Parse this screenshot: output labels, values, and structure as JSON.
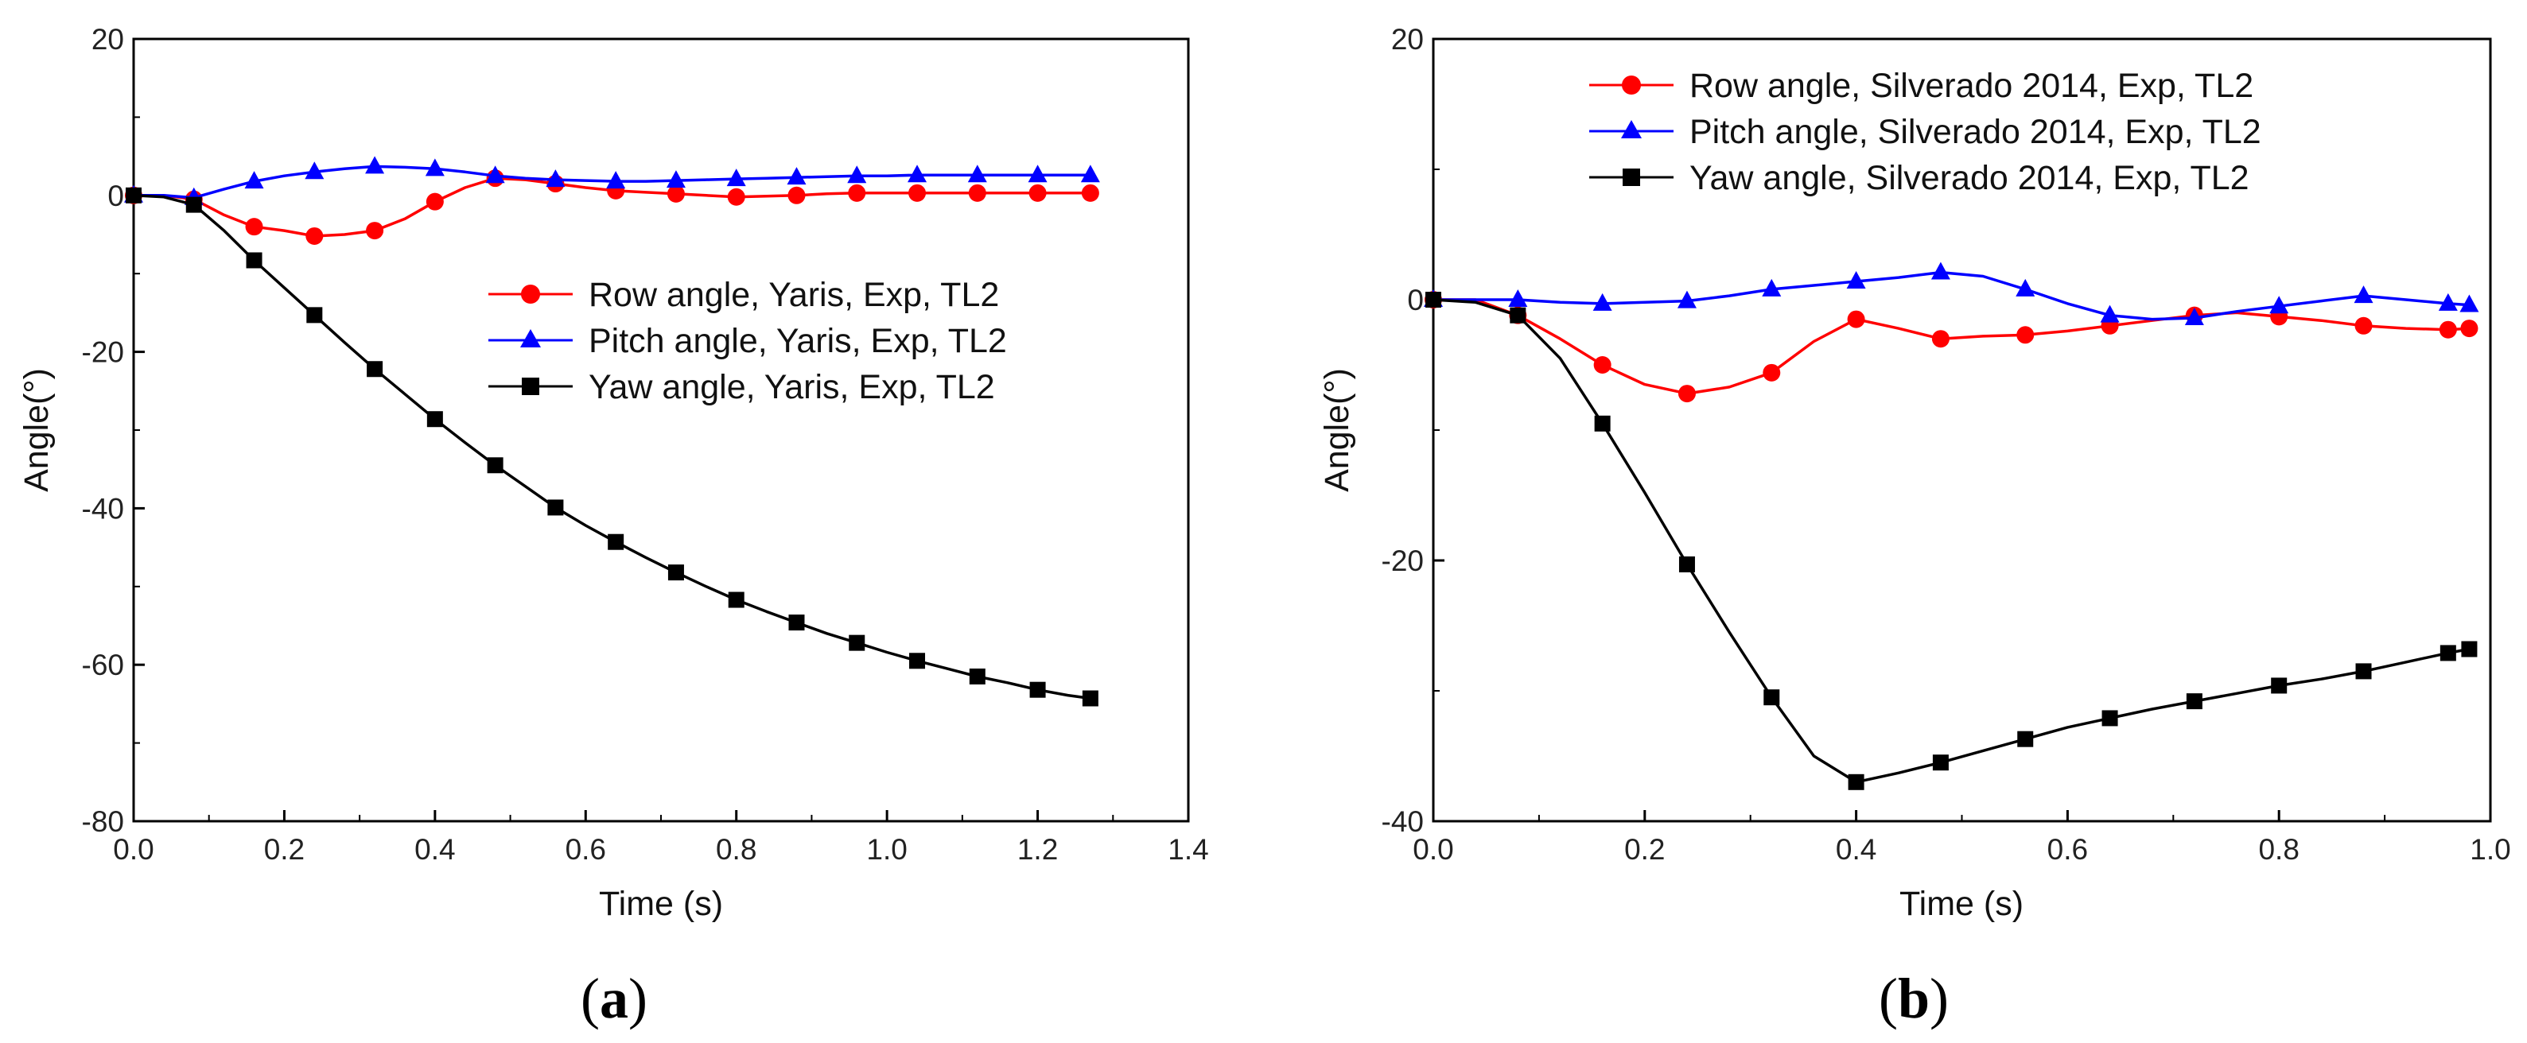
{
  "chart_data": [
    {
      "type": "line",
      "panel_label": {
        "open": "(",
        "letter": "a",
        "close": ")"
      },
      "xlabel": "Time (s)",
      "ylabel": "Angle(°)",
      "xlim": [
        0.0,
        1.4
      ],
      "ylim": [
        -80,
        20
      ],
      "xticks": [
        "0.0",
        "0.2",
        "0.4",
        "0.6",
        "0.8",
        "1.0",
        "1.2",
        "1.4"
      ],
      "yticks": [
        "20",
        "0",
        "-20",
        "-40",
        "-60",
        "-80"
      ],
      "grid": false,
      "legend_position": "right-middle",
      "series": [
        {
          "name": "Row angle, Yaris, Exp, TL2",
          "color": "#ff0000",
          "marker": "circle",
          "markers_at": [
            0.0,
            0.08,
            0.16,
            0.24,
            0.32,
            0.4,
            0.48,
            0.56,
            0.64,
            0.72,
            0.8,
            0.88,
            0.96,
            1.04,
            1.12,
            1.2,
            1.27
          ],
          "x": [
            0.0,
            0.04,
            0.08,
            0.12,
            0.16,
            0.2,
            0.24,
            0.28,
            0.32,
            0.36,
            0.4,
            0.44,
            0.48,
            0.52,
            0.56,
            0.6,
            0.64,
            0.68,
            0.72,
            0.76,
            0.8,
            0.84,
            0.88,
            0.92,
            0.96,
            1.0,
            1.04,
            1.08,
            1.12,
            1.16,
            1.2,
            1.24,
            1.27
          ],
          "values": [
            0,
            0,
            -0.5,
            -2.5,
            -4,
            -4.5,
            -5.2,
            -5,
            -4.5,
            -3,
            -0.8,
            1,
            2.2,
            2,
            1.5,
            1,
            0.6,
            0.4,
            0.2,
            0,
            -0.2,
            -0.1,
            0,
            0.2,
            0.3,
            0.3,
            0.3,
            0.3,
            0.3,
            0.3,
            0.3,
            0.3,
            0.3
          ]
        },
        {
          "name": "Pitch angle, Yaris, Exp, TL2",
          "color": "#0000ff",
          "marker": "triangle",
          "markers_at": [
            0.0,
            0.08,
            0.16,
            0.24,
            0.32,
            0.4,
            0.48,
            0.56,
            0.64,
            0.72,
            0.8,
            0.88,
            0.96,
            1.04,
            1.12,
            1.2,
            1.27
          ],
          "x": [
            0.0,
            0.04,
            0.08,
            0.12,
            0.16,
            0.2,
            0.24,
            0.28,
            0.32,
            0.36,
            0.4,
            0.44,
            0.48,
            0.52,
            0.56,
            0.6,
            0.64,
            0.68,
            0.72,
            0.76,
            0.8,
            0.84,
            0.88,
            0.92,
            0.96,
            1.0,
            1.04,
            1.08,
            1.12,
            1.16,
            1.2,
            1.24,
            1.27
          ],
          "values": [
            0,
            0,
            -0.3,
            0.8,
            1.8,
            2.5,
            3,
            3.4,
            3.7,
            3.6,
            3.4,
            3,
            2.5,
            2.2,
            2,
            1.9,
            1.8,
            1.8,
            1.9,
            2,
            2.1,
            2.2,
            2.3,
            2.4,
            2.5,
            2.5,
            2.6,
            2.6,
            2.6,
            2.6,
            2.6,
            2.6,
            2.6
          ]
        },
        {
          "name": "Yaw angle, Yaris, Exp, TL2",
          "color": "#000000",
          "marker": "square",
          "markers_at": [
            0.0,
            0.08,
            0.16,
            0.24,
            0.32,
            0.4,
            0.48,
            0.56,
            0.64,
            0.72,
            0.8,
            0.88,
            0.96,
            1.04,
            1.12,
            1.2,
            1.27
          ],
          "x": [
            0.0,
            0.04,
            0.08,
            0.12,
            0.16,
            0.2,
            0.24,
            0.28,
            0.32,
            0.36,
            0.4,
            0.44,
            0.48,
            0.52,
            0.56,
            0.6,
            0.64,
            0.68,
            0.72,
            0.76,
            0.8,
            0.84,
            0.88,
            0.92,
            0.96,
            1.0,
            1.04,
            1.08,
            1.12,
            1.16,
            1.2,
            1.24,
            1.27
          ],
          "values": [
            0,
            -0.2,
            -1.2,
            -4.5,
            -8.3,
            -11.8,
            -15.3,
            -18.8,
            -22.2,
            -25.4,
            -28.6,
            -31.6,
            -34.5,
            -37.2,
            -39.9,
            -42.2,
            -44.3,
            -46.3,
            -48.2,
            -50,
            -51.7,
            -53.2,
            -54.6,
            -56,
            -57.2,
            -58.4,
            -59.5,
            -60.5,
            -61.5,
            -62.3,
            -63.2,
            -63.9,
            -64.3
          ]
        }
      ]
    },
    {
      "type": "line",
      "panel_label": {
        "open": "(",
        "letter": "b",
        "close": ")"
      },
      "xlabel": "Time (s)",
      "ylabel": "Angle(°)",
      "xlim": [
        0.0,
        1.0
      ],
      "ylim": [
        -40,
        20
      ],
      "xticks": [
        "0.0",
        "0.2",
        "0.4",
        "0.6",
        "0.8",
        "1.0"
      ],
      "yticks": [
        "20",
        "0",
        "-20",
        "-40"
      ],
      "grid": false,
      "legend_position": "top-left",
      "series": [
        {
          "name": "Row angle, Silverado 2014, Exp, TL2",
          "color": "#ff0000",
          "marker": "circle",
          "markers_at": [
            0.0,
            0.08,
            0.16,
            0.24,
            0.32,
            0.4,
            0.48,
            0.56,
            0.64,
            0.72,
            0.8,
            0.88,
            0.96,
            0.98
          ],
          "x": [
            0.0,
            0.04,
            0.08,
            0.12,
            0.16,
            0.2,
            0.24,
            0.28,
            0.32,
            0.36,
            0.4,
            0.44,
            0.48,
            0.52,
            0.56,
            0.6,
            0.64,
            0.68,
            0.72,
            0.76,
            0.8,
            0.84,
            0.88,
            0.92,
            0.96,
            0.98
          ],
          "values": [
            0,
            0,
            -1.2,
            -3,
            -5,
            -6.5,
            -7.2,
            -6.7,
            -5.6,
            -3.2,
            -1.5,
            -2.2,
            -3,
            -2.8,
            -2.7,
            -2.4,
            -2,
            -1.6,
            -1.2,
            -1,
            -1.3,
            -1.6,
            -2,
            -2.2,
            -2.3,
            -2.2
          ]
        },
        {
          "name": "Pitch angle, Silverado 2014, Exp, TL2",
          "color": "#0000ff",
          "marker": "triangle",
          "markers_at": [
            0.0,
            0.08,
            0.16,
            0.24,
            0.32,
            0.4,
            0.48,
            0.56,
            0.64,
            0.72,
            0.8,
            0.88,
            0.96,
            0.98
          ],
          "x": [
            0.0,
            0.04,
            0.08,
            0.12,
            0.16,
            0.2,
            0.24,
            0.28,
            0.32,
            0.36,
            0.4,
            0.44,
            0.48,
            0.52,
            0.56,
            0.6,
            0.64,
            0.68,
            0.72,
            0.76,
            0.8,
            0.84,
            0.88,
            0.92,
            0.96,
            0.98
          ],
          "values": [
            0,
            0,
            0,
            -0.2,
            -0.3,
            -0.2,
            -0.1,
            0.3,
            0.8,
            1.1,
            1.4,
            1.7,
            2.1,
            1.8,
            0.8,
            -0.3,
            -1.2,
            -1.5,
            -1.4,
            -0.9,
            -0.5,
            -0.1,
            0.3,
            0,
            -0.3,
            -0.4
          ]
        },
        {
          "name": "Yaw angle, Silverado 2014, Exp, TL2",
          "color": "#000000",
          "marker": "square",
          "markers_at": [
            0.0,
            0.08,
            0.16,
            0.24,
            0.32,
            0.4,
            0.48,
            0.56,
            0.64,
            0.72,
            0.8,
            0.88,
            0.96,
            0.98
          ],
          "x": [
            0.0,
            0.04,
            0.08,
            0.12,
            0.16,
            0.2,
            0.24,
            0.28,
            0.32,
            0.36,
            0.4,
            0.44,
            0.48,
            0.52,
            0.56,
            0.6,
            0.64,
            0.68,
            0.72,
            0.76,
            0.8,
            0.84,
            0.88,
            0.92,
            0.96,
            0.98
          ],
          "values": [
            0,
            -0.2,
            -1.2,
            -4.5,
            -9.5,
            -14.8,
            -20.3,
            -25.5,
            -30.5,
            -35,
            -37,
            -36.3,
            -35.5,
            -34.6,
            -33.7,
            -32.8,
            -32.1,
            -31.4,
            -30.8,
            -30.2,
            -29.6,
            -29.1,
            -28.5,
            -27.8,
            -27.1,
            -26.8
          ]
        }
      ]
    }
  ]
}
